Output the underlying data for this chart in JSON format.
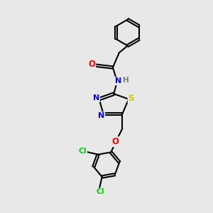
{
  "bg_color": "#e8e8e8",
  "atom_colors": {
    "O": "#ff0000",
    "N": "#0000ff",
    "S": "#cccc00",
    "Cl": "#00cc00",
    "C": "#000000",
    "H": "#777777"
  }
}
